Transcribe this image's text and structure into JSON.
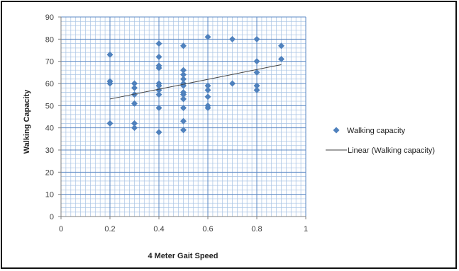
{
  "chart_data": {
    "type": "scatter",
    "title": "",
    "xlabel": "4 Meter Gait Speed",
    "ylabel": "Walking Capacity",
    "xlim": [
      0,
      1
    ],
    "ylim": [
      0,
      90
    ],
    "xticks": [
      0,
      0.2,
      0.4,
      0.6,
      0.8,
      1
    ],
    "yticks": [
      0,
      10,
      20,
      30,
      40,
      50,
      60,
      70,
      80,
      90
    ],
    "grid": true,
    "legend_position": "right",
    "series": [
      {
        "name": "Walking capacity",
        "color": "#4F81BD",
        "marker": "diamond",
        "points": [
          [
            0.2,
            73
          ],
          [
            0.2,
            61
          ],
          [
            0.2,
            60
          ],
          [
            0.2,
            42
          ],
          [
            0.3,
            60
          ],
          [
            0.3,
            58
          ],
          [
            0.3,
            55
          ],
          [
            0.3,
            51
          ],
          [
            0.3,
            42
          ],
          [
            0.3,
            40
          ],
          [
            0.4,
            78
          ],
          [
            0.4,
            72
          ],
          [
            0.4,
            68
          ],
          [
            0.4,
            67
          ],
          [
            0.4,
            60
          ],
          [
            0.4,
            59
          ],
          [
            0.4,
            57
          ],
          [
            0.4,
            55
          ],
          [
            0.4,
            49
          ],
          [
            0.4,
            38
          ],
          [
            0.5,
            77
          ],
          [
            0.5,
            66
          ],
          [
            0.5,
            64
          ],
          [
            0.5,
            62
          ],
          [
            0.5,
            60
          ],
          [
            0.5,
            59
          ],
          [
            0.5,
            56
          ],
          [
            0.5,
            55
          ],
          [
            0.5,
            53
          ],
          [
            0.5,
            49
          ],
          [
            0.5,
            43
          ],
          [
            0.5,
            39
          ],
          [
            0.6,
            81
          ],
          [
            0.6,
            59
          ],
          [
            0.6,
            57
          ],
          [
            0.6,
            54
          ],
          [
            0.6,
            50
          ],
          [
            0.6,
            49
          ],
          [
            0.7,
            80
          ],
          [
            0.7,
            60
          ],
          [
            0.8,
            80
          ],
          [
            0.8,
            70
          ],
          [
            0.8,
            65
          ],
          [
            0.8,
            59
          ],
          [
            0.8,
            57
          ],
          [
            0.9,
            77
          ],
          [
            0.9,
            71
          ]
        ]
      },
      {
        "name": "Linear (Walking capacity)",
        "color": "#404040",
        "type": "trendline",
        "points": [
          [
            0.2,
            53
          ],
          [
            0.9,
            68.5
          ]
        ]
      }
    ]
  }
}
